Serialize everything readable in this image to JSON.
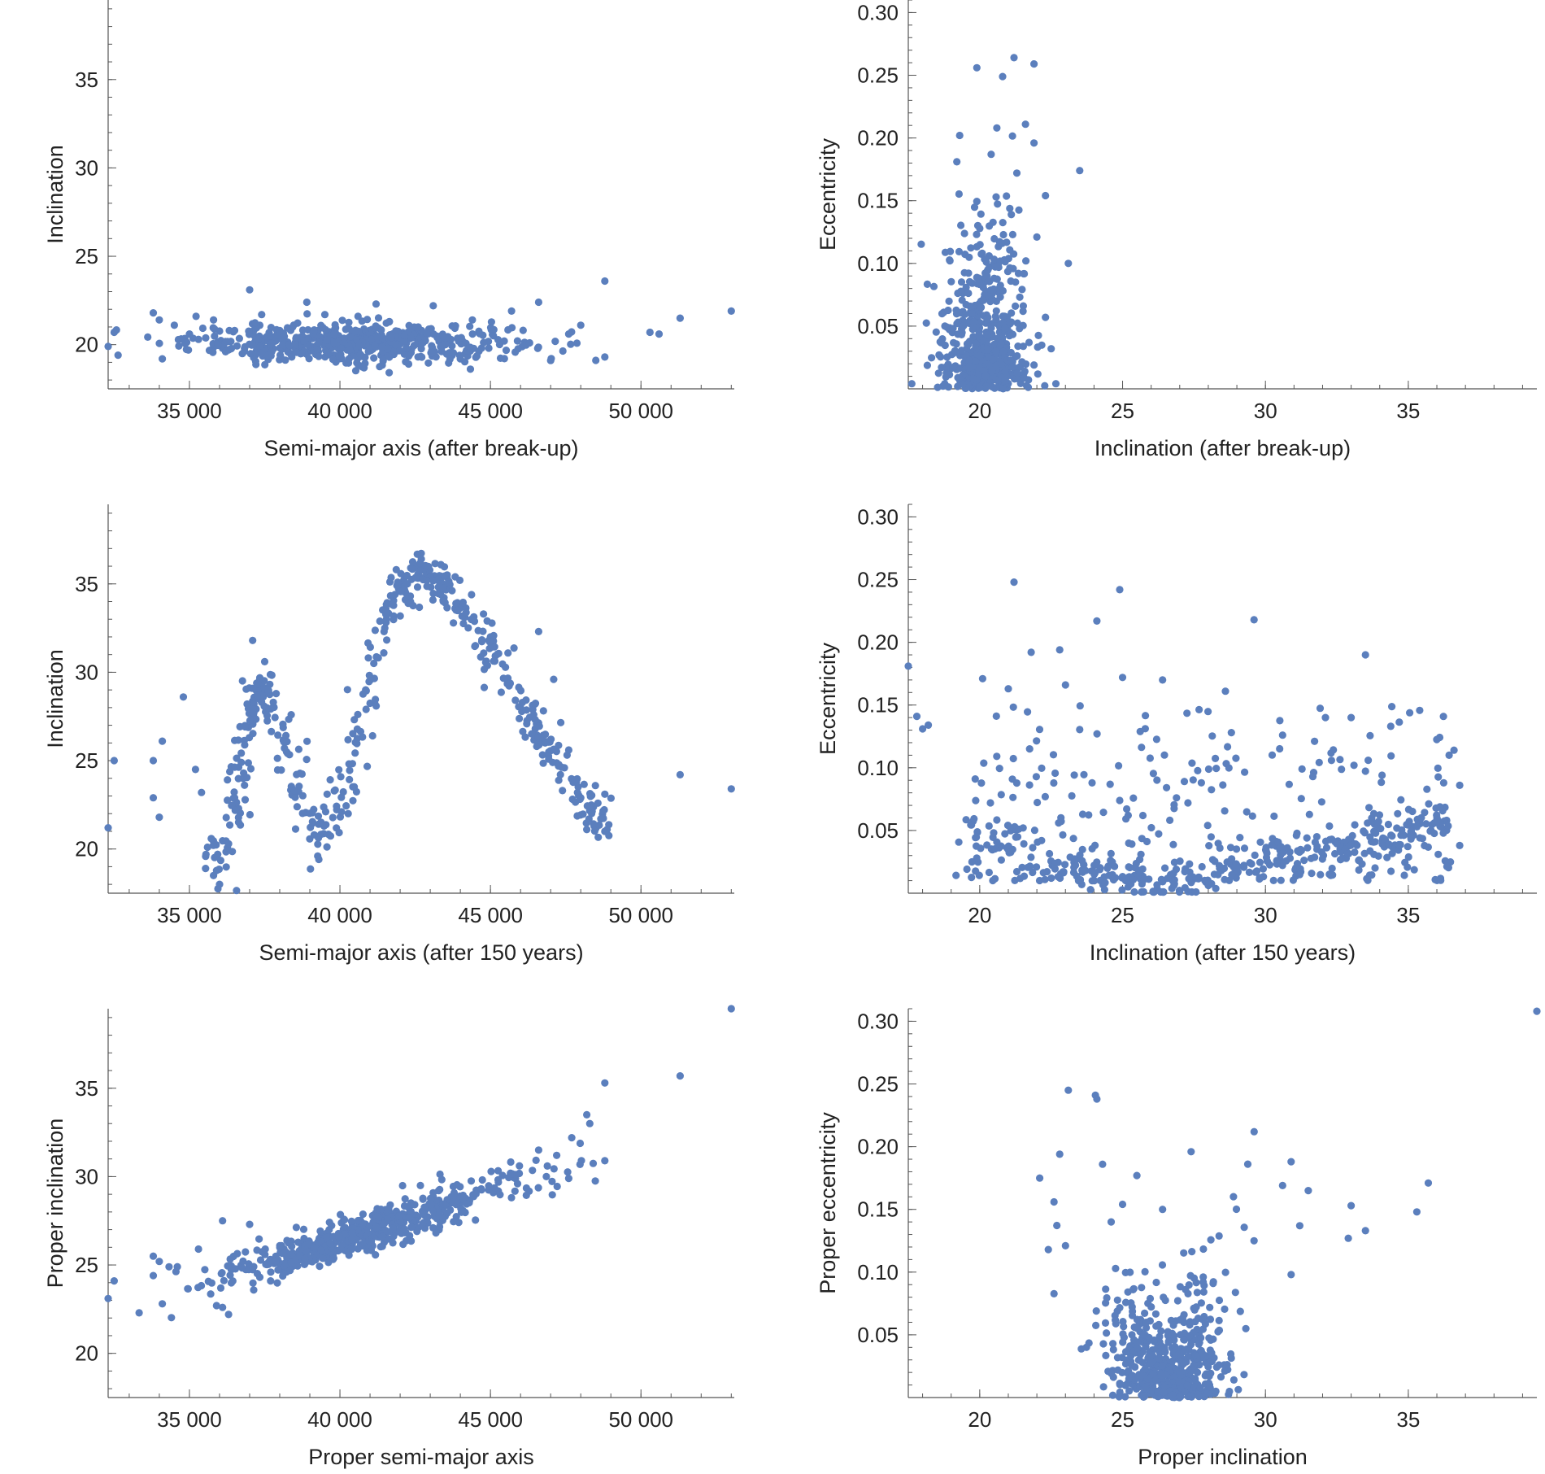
{
  "colors": {
    "point": "#5b7fbd",
    "axis": "#555555",
    "text": "#222222"
  },
  "chart_data": [
    {
      "id": "p1",
      "type": "scatter",
      "xlabel": "Semi-major axis (after break-up)",
      "ylabel": "Inclination",
      "xlim": [
        32300,
        53100
      ],
      "ylim": [
        17.5,
        39.5
      ],
      "xticks": [
        {
          "v": 35000,
          "t": "35 000"
        },
        {
          "v": 40000,
          "t": "40 000"
        },
        {
          "v": 45000,
          "t": "45 000"
        },
        {
          "v": 50000,
          "t": "50 000"
        }
      ],
      "yticks": [
        {
          "v": 20,
          "t": "20"
        },
        {
          "v": 25,
          "t": "25"
        },
        {
          "v": 30,
          "t": "30"
        },
        {
          "v": 35,
          "t": "35"
        }
      ],
      "xminor": 1000,
      "yminor": 1,
      "points": [
        [
          32300,
          19.9
        ],
        [
          32500,
          20.7
        ],
        [
          33800,
          21.8
        ],
        [
          34000,
          21.4
        ],
        [
          34100,
          19.2
        ],
        [
          34500,
          21.1
        ],
        [
          35000,
          20.6
        ],
        [
          35300,
          20.3
        ],
        [
          35800,
          21.4
        ],
        [
          36200,
          19.6
        ],
        [
          36500,
          20.8
        ],
        [
          37000,
          23.1
        ],
        [
          37400,
          21.7
        ],
        [
          38000,
          20.8
        ],
        [
          38400,
          19.3
        ],
        [
          38900,
          22.4
        ],
        [
          39500,
          21.7
        ],
        [
          39800,
          20.1
        ],
        [
          40300,
          19.2
        ],
        [
          40600,
          21.6
        ],
        [
          41200,
          22.3
        ],
        [
          41700,
          20.4
        ],
        [
          42200,
          19.8
        ],
        [
          42600,
          21.0
        ],
        [
          43100,
          22.2
        ],
        [
          43500,
          20.0
        ],
        [
          44000,
          19.2
        ],
        [
          44400,
          21.4
        ],
        [
          45100,
          20.5
        ],
        [
          45700,
          21.9
        ],
        [
          46300,
          20.1
        ],
        [
          46600,
          22.4
        ],
        [
          47000,
          19.1
        ],
        [
          47600,
          20.6
        ],
        [
          48000,
          21.1
        ],
        [
          48800,
          23.6
        ],
        [
          48800,
          19.3
        ],
        [
          50300,
          20.7
        ],
        [
          50600,
          20.6
        ],
        [
          51300,
          21.5
        ],
        [
          53000,
          21.9
        ]
      ],
      "cluster": {
        "cx": 40400,
        "sx": 2700,
        "cy": 20.1,
        "sy": 0.55,
        "n": 560
      }
    },
    {
      "id": "p2",
      "type": "scatter",
      "xlabel": "Inclination (after break-up)",
      "ylabel": "Eccentricity",
      "xlim": [
        17.5,
        39.5
      ],
      "ylim": [
        0.0,
        0.31
      ],
      "xticks": [
        {
          "v": 20,
          "t": "20"
        },
        {
          "v": 25,
          "t": "25"
        },
        {
          "v": 30,
          "t": "30"
        },
        {
          "v": 35,
          "t": "35"
        }
      ],
      "yticks": [
        {
          "v": 0.05,
          "t": "0.05"
        },
        {
          "v": 0.1,
          "t": "0.10"
        },
        {
          "v": 0.15,
          "t": "0.15"
        },
        {
          "v": 0.2,
          "t": "0.20"
        },
        {
          "v": 0.25,
          "t": "0.25"
        },
        {
          "v": 0.3,
          "t": "0.30"
        }
      ],
      "xminor": 1,
      "yminor": 0.01,
      "points": [
        [
          19.9,
          0.256
        ],
        [
          20.8,
          0.249
        ],
        [
          21.2,
          0.264
        ],
        [
          21.9,
          0.259
        ],
        [
          19.3,
          0.202
        ],
        [
          20.6,
          0.208
        ],
        [
          21.6,
          0.211
        ],
        [
          21.9,
          0.196
        ],
        [
          23.5,
          0.174
        ],
        [
          22.3,
          0.154
        ],
        [
          23.1,
          0.1
        ],
        [
          19.2,
          0.181
        ],
        [
          20.4,
          0.187
        ],
        [
          21.3,
          0.172
        ],
        [
          22.0,
          0.121
        ],
        [
          22.3,
          0.057
        ],
        [
          22.5,
          0.032
        ],
        [
          21.9,
          0.019
        ]
      ],
      "cluster": {
        "cx": 20.15,
        "sx": 0.8,
        "cy": 0.045,
        "sy": 0.04,
        "n": 560
      }
    },
    {
      "id": "p3",
      "type": "scatter",
      "xlabel": "Semi-major axis (after 150 years)",
      "ylabel": "Inclination",
      "xlim": [
        32300,
        53100
      ],
      "ylim": [
        17.5,
        39.5
      ],
      "xticks": [
        {
          "v": 35000,
          "t": "35 000"
        },
        {
          "v": 40000,
          "t": "40 000"
        },
        {
          "v": 45000,
          "t": "45 000"
        },
        {
          "v": 50000,
          "t": "50 000"
        }
      ],
      "yticks": [
        {
          "v": 20,
          "t": "20"
        },
        {
          "v": 25,
          "t": "25"
        },
        {
          "v": 30,
          "t": "30"
        },
        {
          "v": 35,
          "t": "35"
        }
      ],
      "xminor": 1000,
      "yminor": 1,
      "points": [
        [
          32300,
          21.2
        ],
        [
          32500,
          25.0
        ],
        [
          33800,
          25.0
        ],
        [
          33800,
          22.9
        ],
        [
          34000,
          21.8
        ],
        [
          34100,
          26.1
        ],
        [
          34800,
          28.6
        ],
        [
          35200,
          24.5
        ],
        [
          35400,
          23.2
        ],
        [
          35600,
          20.1
        ],
        [
          35800,
          18.5
        ],
        [
          36000,
          18.0
        ],
        [
          36300,
          20.3
        ],
        [
          36500,
          22.9
        ],
        [
          36800,
          24.3
        ],
        [
          37100,
          31.8
        ],
        [
          37500,
          30.6
        ],
        [
          46600,
          32.3
        ],
        [
          47100,
          29.6
        ],
        [
          47600,
          25.6
        ],
        [
          47800,
          23.9
        ],
        [
          48000,
          22.9
        ],
        [
          48300,
          22.4
        ],
        [
          48800,
          23.1
        ],
        [
          48800,
          21.0
        ],
        [
          48200,
          21.1
        ],
        [
          51300,
          24.2
        ],
        [
          53000,
          23.4
        ]
      ],
      "curve": {
        "xs": [
          35600,
          36500,
          37100,
          37600,
          38400,
          39300,
          40300,
          41200,
          42000,
          42800,
          43700,
          44800,
          45800,
          46800,
          47800,
          48800
        ],
        "ys": [
          17.6,
          22.0,
          28.4,
          28.9,
          24.6,
          20.0,
          24.4,
          31.5,
          34.8,
          35.6,
          34.6,
          32.0,
          28.8,
          26.0,
          23.4,
          21.5
        ],
        "sx": 220,
        "sy": 0.65,
        "n": 520
      }
    },
    {
      "id": "p4",
      "type": "scatter",
      "xlabel": "Inclination (after 150 years)",
      "ylabel": "Eccentricity",
      "xlim": [
        17.5,
        39.5
      ],
      "ylim": [
        0.0,
        0.31
      ],
      "xticks": [
        {
          "v": 20,
          "t": "20"
        },
        {
          "v": 25,
          "t": "25"
        },
        {
          "v": 30,
          "t": "30"
        },
        {
          "v": 35,
          "t": "35"
        }
      ],
      "yticks": [
        {
          "v": 0.05,
          "t": "0.05"
        },
        {
          "v": 0.1,
          "t": "0.10"
        },
        {
          "v": 0.15,
          "t": "0.15"
        },
        {
          "v": 0.2,
          "t": "0.20"
        },
        {
          "v": 0.25,
          "t": "0.25"
        },
        {
          "v": 0.3,
          "t": "0.30"
        }
      ],
      "xminor": 1,
      "yminor": 0.01,
      "points": [
        [
          17.5,
          0.181
        ],
        [
          17.8,
          0.141
        ],
        [
          18.0,
          0.131
        ],
        [
          18.2,
          0.134
        ],
        [
          21.2,
          0.248
        ],
        [
          24.9,
          0.242
        ],
        [
          24.1,
          0.217
        ],
        [
          29.6,
          0.218
        ],
        [
          33.5,
          0.19
        ],
        [
          21.8,
          0.192
        ],
        [
          22.8,
          0.194
        ],
        [
          25.0,
          0.172
        ],
        [
          26.4,
          0.17
        ],
        [
          20.1,
          0.171
        ],
        [
          21.0,
          0.163
        ],
        [
          23.0,
          0.166
        ],
        [
          28.6,
          0.161
        ],
        [
          32.1,
          0.14
        ],
        [
          33.0,
          0.14
        ],
        [
          30.6,
          0.126
        ],
        [
          36.6,
          0.114
        ],
        [
          36.8,
          0.086
        ],
        [
          36.8,
          0.038
        ]
      ],
      "bands": [
        {
          "x0": 19.5,
          "x1": 36.5,
          "y0": 0.045,
          "y1": 0.005,
          "y2": 0.055,
          "spread": 0.008,
          "n": 330
        },
        {
          "x0": 19.0,
          "x1": 36.5,
          "yfixed": true,
          "ylo": 0.01,
          "yhi": 0.15,
          "n": 280
        }
      ]
    },
    {
      "id": "p5",
      "type": "scatter",
      "xlabel": "Proper semi-major axis",
      "ylabel": "Proper inclination",
      "xlim": [
        32300,
        53100
      ],
      "ylim": [
        17.5,
        39.5
      ],
      "xticks": [
        {
          "v": 35000,
          "t": "35 000"
        },
        {
          "v": 40000,
          "t": "40 000"
        },
        {
          "v": 45000,
          "t": "45 000"
        },
        {
          "v": 50000,
          "t": "50 000"
        }
      ],
      "yticks": [
        {
          "v": 20,
          "t": "20"
        },
        {
          "v": 25,
          "t": "25"
        },
        {
          "v": 30,
          "t": "30"
        },
        {
          "v": 35,
          "t": "35"
        }
      ],
      "xminor": 1000,
      "yminor": 1,
      "points": [
        [
          32300,
          23.1
        ],
        [
          32500,
          24.1
        ],
        [
          33800,
          25.5
        ],
        [
          33800,
          24.4
        ],
        [
          34000,
          25.2
        ],
        [
          34100,
          22.8
        ],
        [
          34600,
          24.9
        ],
        [
          35300,
          25.9
        ],
        [
          35900,
          22.7
        ],
        [
          36100,
          22.6
        ],
        [
          36300,
          22.2
        ],
        [
          36100,
          27.5
        ],
        [
          37000,
          27.3
        ],
        [
          46600,
          31.5
        ],
        [
          47200,
          31.2
        ],
        [
          47700,
          32.2
        ],
        [
          48200,
          33.5
        ],
        [
          48300,
          33.0
        ],
        [
          48800,
          35.3
        ],
        [
          48800,
          30.9
        ],
        [
          51300,
          35.7
        ],
        [
          53000,
          39.5
        ],
        [
          47600,
          29.9
        ],
        [
          45900,
          29.6
        ]
      ],
      "linear": {
        "x0": 35500,
        "x1": 47500,
        "y0": 24.0,
        "y1": 30.5,
        "sy": 0.6,
        "cx": 40800,
        "sx": 2600,
        "n": 560
      }
    },
    {
      "id": "p6",
      "type": "scatter",
      "xlabel": "Proper inclination",
      "ylabel": "Proper eccentricity",
      "xlim": [
        17.5,
        39.5
      ],
      "ylim": [
        0.0,
        0.31
      ],
      "xticks": [
        {
          "v": 20,
          "t": "20"
        },
        {
          "v": 25,
          "t": "25"
        },
        {
          "v": 30,
          "t": "30"
        },
        {
          "v": 35,
          "t": "35"
        }
      ],
      "yticks": [
        {
          "v": 0.05,
          "t": "0.05"
        },
        {
          "v": 0.1,
          "t": "0.10"
        },
        {
          "v": 0.15,
          "t": "0.15"
        },
        {
          "v": 0.2,
          "t": "0.20"
        },
        {
          "v": 0.25,
          "t": "0.25"
        },
        {
          "v": 0.3,
          "t": "0.30"
        }
      ],
      "xminor": 1,
      "yminor": 0.01,
      "points": [
        [
          39.5,
          0.308
        ],
        [
          23.1,
          0.245
        ],
        [
          24.1,
          0.238
        ],
        [
          22.8,
          0.194
        ],
        [
          22.1,
          0.175
        ],
        [
          24.3,
          0.186
        ],
        [
          25.5,
          0.177
        ],
        [
          27.4,
          0.196
        ],
        [
          30.9,
          0.188
        ],
        [
          30.6,
          0.169
        ],
        [
          31.5,
          0.165
        ],
        [
          35.7,
          0.171
        ],
        [
          35.3,
          0.148
        ],
        [
          33.0,
          0.153
        ],
        [
          33.5,
          0.133
        ],
        [
          32.9,
          0.127
        ],
        [
          31.2,
          0.137
        ],
        [
          30.9,
          0.098
        ],
        [
          22.6,
          0.156
        ],
        [
          22.4,
          0.118
        ],
        [
          23.0,
          0.121
        ],
        [
          24.6,
          0.14
        ],
        [
          25.0,
          0.154
        ],
        [
          26.4,
          0.15
        ],
        [
          29.6,
          0.125
        ]
      ],
      "cluster": {
        "cx": 26.5,
        "sx": 1.1,
        "cy": 0.035,
        "sy": 0.028,
        "n": 520,
        "wedge": true
      }
    }
  ]
}
